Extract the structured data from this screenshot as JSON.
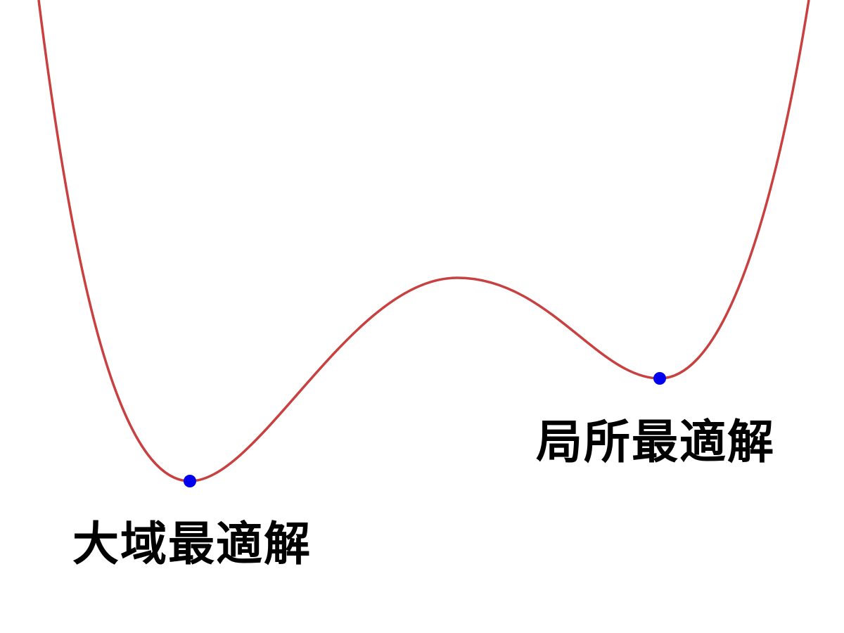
{
  "labels": {
    "global_minimum": "大域最適解",
    "local_minimum": "局所最適解"
  },
  "colors": {
    "curve": "#c94040",
    "points": "#0000ee",
    "text": "#000000",
    "background": "#ffffff"
  }
}
